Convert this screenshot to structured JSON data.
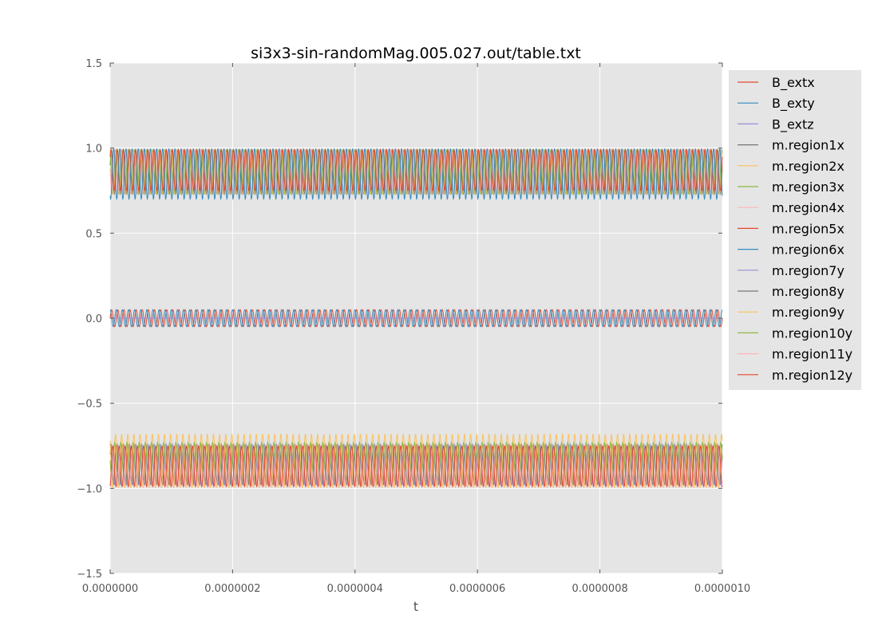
{
  "chart_data": {
    "type": "line",
    "title": "si3x3-sin-randomMag.005.027.out/table.txt",
    "xlabel": "t",
    "ylabel": "",
    "xlim": [
      0,
      1e-06
    ],
    "ylim": [
      -1.5,
      1.5
    ],
    "x_ticks": [
      "0.0000000",
      "0.0000002",
      "0.0000004",
      "0.0000006",
      "0.0000008",
      "0.0000010"
    ],
    "y_ticks": [
      "1.5",
      "1.0",
      "0.5",
      "0.0",
      "−0.5",
      "−1.0",
      "−1.5"
    ],
    "grid": true,
    "legend_position": "outside-right",
    "oscillation_cycles": 100,
    "series": [
      {
        "name": "B_extx",
        "color": "#E24A33",
        "center": 0.0,
        "amplitude": 0.05,
        "phase": 0.0
      },
      {
        "name": "B_exty",
        "color": "#348ABD",
        "center": 0.0,
        "amplitude": 0.05,
        "phase": 1.5708
      },
      {
        "name": "B_extz",
        "color": "#988ED5",
        "center": 0.0,
        "amplitude": 0.0,
        "phase": 0.0
      },
      {
        "name": "m.region1x",
        "color": "#777777",
        "center": 0.86,
        "amplitude": 0.13,
        "phase": 0.3
      },
      {
        "name": "m.region2x",
        "color": "#FBC15E",
        "center": 0.86,
        "amplitude": 0.13,
        "phase": 1.2
      },
      {
        "name": "m.region3x",
        "color": "#8EBA42",
        "center": 0.86,
        "amplitude": 0.13,
        "phase": 2.1
      },
      {
        "name": "m.region4x",
        "color": "#FFB5B8",
        "center": 0.86,
        "amplitude": 0.13,
        "phase": 3.0
      },
      {
        "name": "m.region5x",
        "color": "#E24A33",
        "center": 0.87,
        "amplitude": 0.12,
        "phase": 0.7
      },
      {
        "name": "m.region6x",
        "color": "#348ABD",
        "center": 0.85,
        "amplitude": 0.15,
        "phase": 4.2
      },
      {
        "name": "m.region7y",
        "color": "#988ED5",
        "center": -0.86,
        "amplitude": 0.12,
        "phase": 0.5
      },
      {
        "name": "m.region8y",
        "color": "#777777",
        "center": -0.86,
        "amplitude": 0.12,
        "phase": 1.4
      },
      {
        "name": "m.region9y",
        "color": "#FBC15E",
        "center": -0.84,
        "amplitude": 0.16,
        "phase": 2.3
      },
      {
        "name": "m.region10y",
        "color": "#8EBA42",
        "center": -0.83,
        "amplitude": 0.1,
        "phase": 3.2
      },
      {
        "name": "m.region11y",
        "color": "#FFB5B8",
        "center": -0.9,
        "amplitude": 0.09,
        "phase": 4.1
      },
      {
        "name": "m.region12y",
        "color": "#E24A33",
        "center": -0.87,
        "amplitude": 0.12,
        "phase": 5.0
      }
    ]
  }
}
